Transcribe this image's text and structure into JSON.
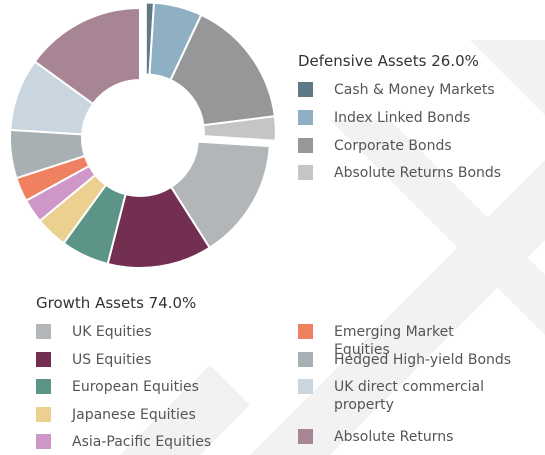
{
  "chart_data": {
    "type": "donut",
    "groups": [
      {
        "title": "Defensive Assets 26.0%",
        "items": [
          {
            "name": "Cash & Money Markets",
            "color": "#5f7a86",
            "value": 1
          },
          {
            "name": "Index Linked Bonds",
            "color": "#8fb0c2",
            "value": 6
          },
          {
            "name": "Corporate Bonds",
            "color": "#959799",
            "value": 16
          },
          {
            "name": "Absolute Returns Bonds",
            "color": "#c4c5c6",
            "value": 3
          }
        ]
      },
      {
        "title": "Growth Assets 74.0%",
        "items": [
          {
            "name": "UK Equities",
            "color": "#b2b6b8",
            "value": 15
          },
          {
            "name": "US Equities",
            "color": "#732f51",
            "value": 13
          },
          {
            "name": "European Equities",
            "color": "#5d9488",
            "value": 6
          },
          {
            "name": "Japanese Equities",
            "color": "#ecd090",
            "value": 4
          },
          {
            "name": "Asia-Pacific Equities",
            "color": "#cf96c8",
            "value": 3
          },
          {
            "name": "Emerging Market Equities",
            "color": "#ef8060",
            "value": 3
          },
          {
            "name": "Hedged High-yield Bonds",
            "color": "#a9b0b4",
            "value": 6
          },
          {
            "name": "UK direct commercial property",
            "color": "#c9d5df",
            "value": 9
          },
          {
            "name": "Absolute Returns",
            "color": "#a78595",
            "value": 15
          }
        ]
      }
    ]
  }
}
